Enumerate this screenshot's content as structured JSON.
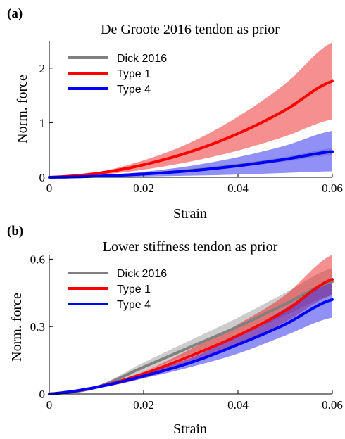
{
  "chart_data": [
    {
      "type": "line",
      "panel_label": "(a)",
      "title": "De Groote 2016 tendon as prior",
      "xlabel": "Strain",
      "ylabel": "Norm. force",
      "xlim": [
        0,
        0.06
      ],
      "ylim": [
        0,
        2.5
      ],
      "xticks": [
        0,
        0.02,
        0.04,
        0.06
      ],
      "xtick_labels": [
        "0",
        "0.02",
        "0.04",
        "0.06"
      ],
      "yticks": [
        0,
        1,
        2
      ],
      "ytick_labels": [
        "0",
        "1",
        "2"
      ],
      "legend_position": "top-left",
      "series": [
        {
          "name": "Dick 2016",
          "color": "#808080",
          "band_color": "#999999",
          "x": [
            0,
            0.01,
            0.02,
            0.03,
            0.04,
            0.05,
            0.06
          ],
          "mean": [
            0,
            0.02,
            0.06,
            0.13,
            0.22,
            0.33,
            0.47
          ],
          "lower": [
            0,
            0.02,
            0.05,
            0.11,
            0.19,
            0.29,
            0.41
          ],
          "upper": [
            0,
            0.025,
            0.07,
            0.15,
            0.25,
            0.37,
            0.53
          ]
        },
        {
          "name": "Type 1",
          "color": "#ff0000",
          "band_color": "#ee2222",
          "x": [
            0,
            0.01,
            0.02,
            0.03,
            0.04,
            0.05,
            0.06
          ],
          "mean": [
            0,
            0.07,
            0.23,
            0.47,
            0.8,
            1.23,
            1.76
          ],
          "lower": [
            0,
            0.04,
            0.14,
            0.29,
            0.49,
            0.75,
            1.06
          ],
          "upper": [
            0,
            0.09,
            0.31,
            0.64,
            1.11,
            1.71,
            2.47
          ]
        },
        {
          "name": "Type 4",
          "color": "#0000ff",
          "band_color": "#2222ee",
          "x": [
            0,
            0.01,
            0.02,
            0.03,
            0.04,
            0.05,
            0.06
          ],
          "mean": [
            0,
            0.02,
            0.06,
            0.12,
            0.21,
            0.33,
            0.47
          ],
          "lower": [
            0,
            0.004,
            0.015,
            0.03,
            0.05,
            0.08,
            0.11
          ],
          "upper": [
            0,
            0.03,
            0.1,
            0.21,
            0.37,
            0.58,
            0.85
          ]
        }
      ]
    },
    {
      "type": "line",
      "panel_label": "(b)",
      "title": "Lower stiffness tendon as prior",
      "xlabel": "Strain",
      "ylabel": "Norm. force",
      "xlim": [
        0,
        0.06
      ],
      "ylim": [
        0,
        0.62
      ],
      "xticks": [
        0,
        0.02,
        0.04,
        0.06
      ],
      "xtick_labels": [
        "0",
        "0.02",
        "0.04",
        "0.06"
      ],
      "yticks": [
        0,
        0.3,
        0.6
      ],
      "ytick_labels": [
        "0",
        "0.3",
        "0.6"
      ],
      "legend_position": "top-left",
      "series": [
        {
          "name": "Dick 2016",
          "color": "#808080",
          "band_color": "#999999",
          "x": [
            0,
            0.01,
            0.02,
            0.03,
            0.04,
            0.05,
            0.06
          ],
          "mean": [
            0,
            0.03,
            0.12,
            0.21,
            0.3,
            0.4,
            0.5
          ],
          "lower": [
            0,
            0.025,
            0.1,
            0.18,
            0.26,
            0.35,
            0.44
          ],
          "upper": [
            0,
            0.035,
            0.14,
            0.24,
            0.34,
            0.45,
            0.56
          ]
        },
        {
          "name": "Type 1",
          "color": "#ff0000",
          "band_color": "#ee2222",
          "x": [
            0,
            0.01,
            0.02,
            0.03,
            0.04,
            0.05,
            0.06
          ],
          "mean": [
            0,
            0.03,
            0.09,
            0.17,
            0.26,
            0.37,
            0.51
          ],
          "lower": [
            0,
            0.025,
            0.07,
            0.14,
            0.22,
            0.32,
            0.44
          ],
          "upper": [
            0,
            0.035,
            0.1,
            0.2,
            0.31,
            0.44,
            0.62
          ]
        },
        {
          "name": "Type 4",
          "color": "#0000ff",
          "band_color": "#2222ee",
          "x": [
            0,
            0.01,
            0.02,
            0.03,
            0.04,
            0.05,
            0.06
          ],
          "mean": [
            0,
            0.03,
            0.08,
            0.14,
            0.22,
            0.31,
            0.42
          ],
          "lower": [
            0,
            0.025,
            0.07,
            0.12,
            0.18,
            0.26,
            0.34
          ],
          "upper": [
            0,
            0.035,
            0.09,
            0.16,
            0.26,
            0.38,
            0.51
          ]
        }
      ]
    }
  ]
}
